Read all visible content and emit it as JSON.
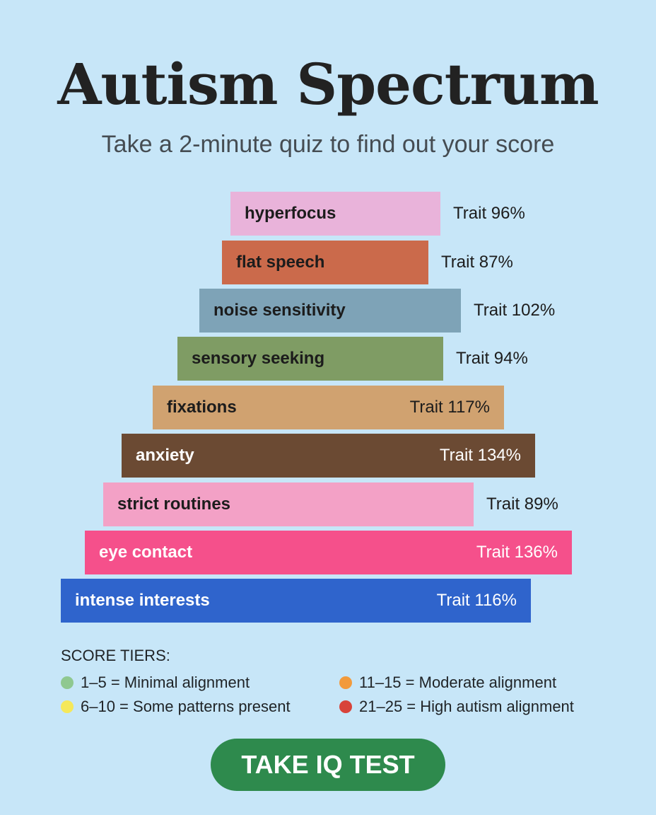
{
  "title": "Autism Spectrum",
  "subtitle": "Take a 2-minute quiz to find out your score",
  "traits": [
    {
      "label": "hyperfocus",
      "value_text": "Trait 96%",
      "value": 96,
      "color": "#e9b3da",
      "text_color": "#1c1c1c"
    },
    {
      "label": "flat speech",
      "value_text": "Trait 87%",
      "value": 87,
      "color": "#cb6a4b",
      "text_color": "#1c1c1c"
    },
    {
      "label": "noise sensitivity",
      "value_text": "Trait 102%",
      "value": 102,
      "color": "#7ea3b7",
      "text_color": "#1c1c1c"
    },
    {
      "label": "sensory seeking",
      "value_text": "Trait 94%",
      "value": 94,
      "color": "#7f9c64",
      "text_color": "#1c1c1c"
    },
    {
      "label": "fixations",
      "value_text": "Trait 117%",
      "value": 117,
      "color": "#d0a270",
      "text_color": "#1c1c1c"
    },
    {
      "label": "anxiety",
      "value_text": "Trait 134%",
      "value": 134,
      "color": "#6b4a33",
      "text_color": "#ffffff"
    },
    {
      "label": "strict routines",
      "value_text": "Trait 89%",
      "value": 89,
      "color": "#f3a1c6",
      "text_color": "#1c1c1c"
    },
    {
      "label": "eye contact",
      "value_text": "Trait 136%",
      "value": 136,
      "color": "#f5508b",
      "text_color": "#ffffff"
    },
    {
      "label": "intense interests",
      "value_text": "Trait 116%",
      "value": 116,
      "color": "#2f64cc",
      "text_color": "#ffffff"
    }
  ],
  "legend": {
    "heading": "SCORE TIERS:",
    "items": [
      {
        "label": "1–5 = Minimal alignment",
        "color": "#8fc890"
      },
      {
        "label": "11–15 = Moderate alignment",
        "color": "#f29a3c"
      },
      {
        "label": "6–10 = Some patterns present",
        "color": "#f5e85a"
      },
      {
        "label": "21–25 = High autism alignment",
        "color": "#d8433a"
      }
    ]
  },
  "cta": {
    "label": "TAKE IQ TEST"
  }
}
